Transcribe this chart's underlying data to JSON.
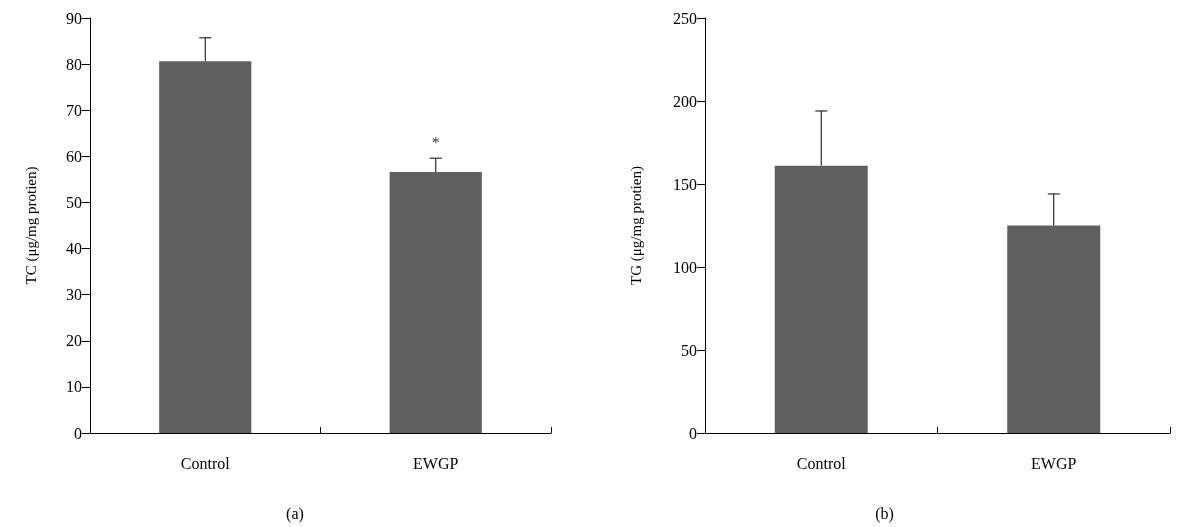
{
  "chart_data": [
    {
      "type": "bar",
      "categories": [
        "Control",
        "EWGP"
      ],
      "values": [
        80.6,
        56.6
      ],
      "color": "#5f5f5f",
      "errors": [
        [
          80.6,
          85.7
        ],
        [
          56.6,
          59.6
        ]
      ],
      "ylabel": "TC (μg/mg protien)",
      "ylim": [
        0,
        90
      ],
      "yticks": [
        0,
        10,
        20,
        30,
        40,
        50,
        60,
        70,
        80,
        90
      ],
      "grid": false,
      "annotations": [
        {
          "text": "*",
          "x": "EWGP",
          "y": 59.6
        },
        "(a)"
      ]
    },
    {
      "type": "bar",
      "categories": [
        "Control",
        "EWGP"
      ],
      "values": [
        161,
        125
      ],
      "color": "#5f5f5f",
      "errors": [
        [
          161,
          194
        ],
        [
          125,
          144
        ]
      ],
      "ylabel": "TG (μg/mg protien)",
      "ylim": [
        0,
        250
      ],
      "yticks": [
        0,
        50,
        100,
        150,
        200,
        250
      ],
      "grid": false,
      "annotations": [
        "(b)"
      ]
    }
  ]
}
